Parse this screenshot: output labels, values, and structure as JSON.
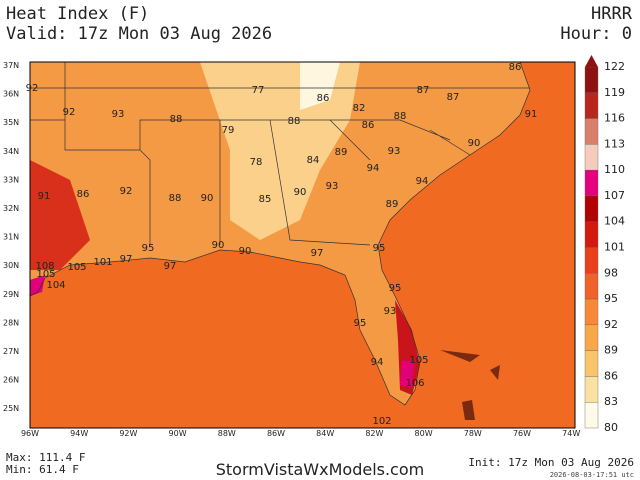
{
  "header": {
    "title": "Heat Index (F)",
    "valid": "Valid: 17z Mon 03 Aug 2026",
    "model": "HRRR",
    "hour": "Hour: 0"
  },
  "map": {
    "lat_labels": [
      "37N",
      "36N",
      "35N",
      "34N",
      "33N",
      "32N",
      "31N",
      "30N",
      "29N",
      "28N",
      "27N",
      "26N",
      "25N"
    ],
    "lon_labels": [
      "96W",
      "94W",
      "92W",
      "90W",
      "88W",
      "86W",
      "84W",
      "82W",
      "80W",
      "78W",
      "76W",
      "74W"
    ],
    "point_values": [
      92,
      92,
      93,
      88,
      77,
      86,
      82,
      87,
      87,
      86,
      91,
      79,
      88,
      86,
      88,
      78,
      84,
      89,
      93,
      90,
      91,
      86,
      92,
      88,
      90,
      85,
      90,
      93,
      94,
      94,
      89,
      95,
      97,
      97,
      90,
      90,
      97,
      95,
      101,
      105,
      108,
      105,
      104,
      95,
      93,
      95,
      105,
      94,
      106,
      102
    ]
  },
  "colorbar": {
    "ticks": [
      122,
      119,
      116,
      113,
      110,
      107,
      104,
      101,
      98,
      95,
      92,
      89,
      86,
      83,
      80
    ],
    "colors": [
      "#8e1212",
      "#b8261e",
      "#d8806c",
      "#f6cbbe",
      "#e6007e",
      "#b30000",
      "#d41a10",
      "#e8401a",
      "#f0622a",
      "#f68838",
      "#f8a848",
      "#f9c46a",
      "#fbe0a4",
      "#fffbe8"
    ]
  },
  "footer": {
    "max": "Max: 111.4 F",
    "min": "Min: 61.4 F",
    "site": "StormVistaWxModels.com",
    "init": "Init: 17z Mon 03 Aug 2026",
    "timestamp": "2026-08-03-17:51 utc"
  }
}
